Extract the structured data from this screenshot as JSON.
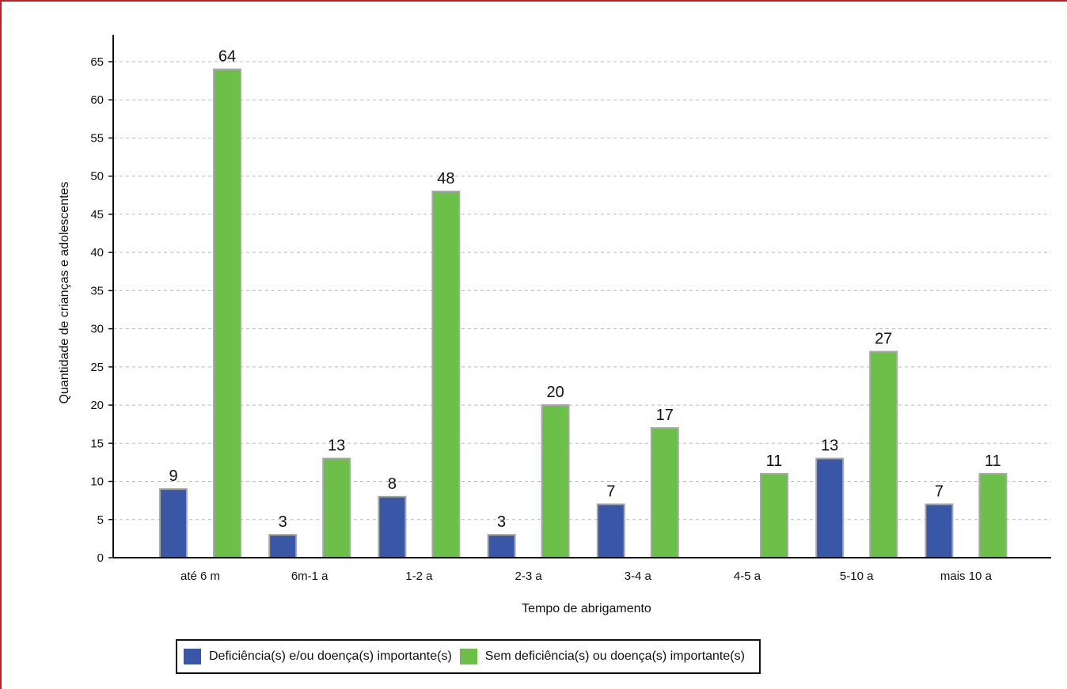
{
  "chart_data": {
    "type": "bar",
    "categories": [
      "até 6 m",
      "6m-1 a",
      "1-2 a",
      "2-3 a",
      "3-4 a",
      "4-5 a",
      "5-10 a",
      "mais 10 a"
    ],
    "series": [
      {
        "name": "Deficiência(s) e/ou doença(s) importante(s)",
        "values": [
          9,
          3,
          8,
          3,
          7,
          null,
          13,
          7
        ],
        "color": "#3a57a7"
      },
      {
        "name": "Sem deficiência(s) ou doença(s) importante(s)",
        "values": [
          64,
          13,
          48,
          20,
          17,
          11,
          27,
          11
        ],
        "color": "#6cc04a"
      }
    ],
    "xlabel": "Tempo de abrigamento",
    "ylabel": "Quantidade de crianças e adolescentes",
    "ylim": [
      0,
      65
    ],
    "yticks": [
      0,
      5,
      10,
      15,
      20,
      25,
      30,
      35,
      40,
      45,
      50,
      55,
      60,
      65
    ],
    "grid": true,
    "legend": "bottom"
  },
  "colors": {
    "frame": "#b5262b",
    "grid": "#b9b9b9",
    "bar_border": "#a9a9a9"
  }
}
